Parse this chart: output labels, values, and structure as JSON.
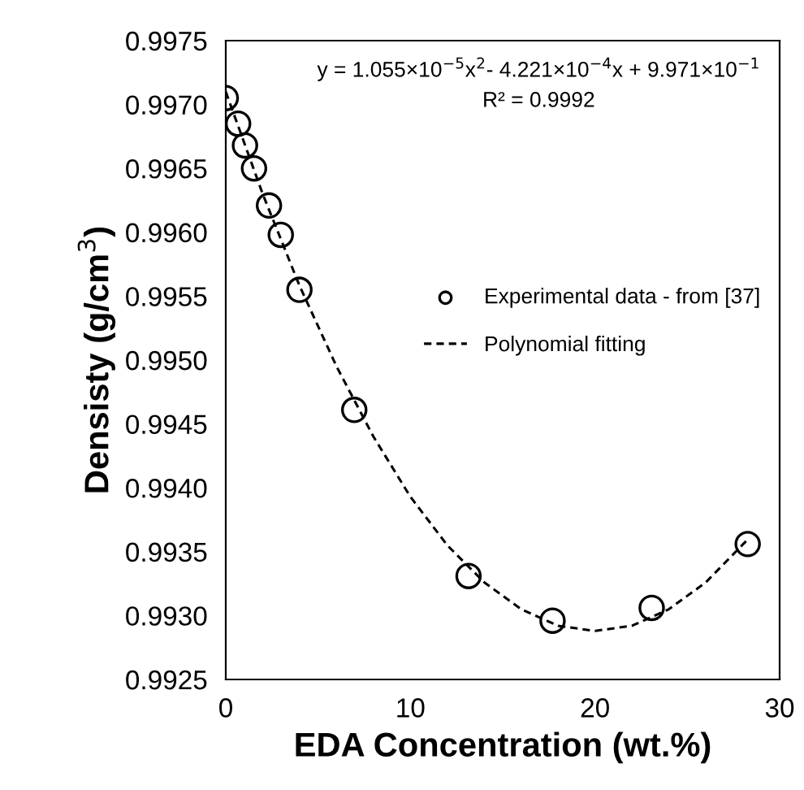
{
  "chart_data": {
    "type": "scatter",
    "xlabel": "EDA Concentration (wt.%)",
    "ylabel": "Densisty (g/cm$^{3}$)",
    "series": [
      {
        "name": "Experimental data - from [37]",
        "color": "#000000",
        "marker": "circle",
        "x": [
          0,
          0.67,
          1.04,
          1.53,
          2.34,
          2.98,
          3.99,
          6.96,
          13.15,
          17.7,
          23.07,
          28.27
        ],
        "values": [
          0.99705,
          0.99685,
          0.99668,
          0.9965,
          0.99621,
          0.99598,
          0.99555,
          0.99461,
          0.99331,
          0.99296,
          0.99306,
          0.99356
        ]
      },
      {
        "name": "Polynomial fitting",
        "type": "line",
        "color": "#000000",
        "line_style": "dashed",
        "marker": "none",
        "x": [
          0,
          2,
          4,
          6,
          8,
          10,
          12,
          14,
          16,
          18,
          20,
          22,
          24,
          26,
          28.3
        ],
        "values": [
          0.9971,
          0.9963,
          0.99558,
          0.99495,
          0.9944,
          0.99393,
          0.99355,
          0.99326,
          0.99305,
          0.99292,
          0.99288,
          0.99292,
          0.99305,
          0.99326,
          0.9936
        ]
      }
    ],
    "annotations": [
      "y = 1.055×10$^{−5}$x$^{2}$- 4.221×10$^{−4}$x + 9.971×10$^{−1}$",
      "R² = 0.9992"
    ],
    "xlim": [
      0,
      30
    ],
    "xticks": [
      0,
      10,
      20,
      30
    ],
    "ylim": [
      0.9925,
      0.9975
    ],
    "yticks": [
      {
        "value": 0.9925,
        "label": "0.9925"
      },
      {
        "value": 0.993,
        "label": "0.9930"
      },
      {
        "value": 0.9935,
        "label": "0.9935"
      },
      {
        "value": 0.994,
        "label": "0.9940"
      },
      {
        "value": 0.9945,
        "label": "0.9945"
      },
      {
        "value": 0.995,
        "label": "0.9950"
      },
      {
        "value": 0.9955,
        "label": "0.9955"
      },
      {
        "value": 0.996,
        "label": "0.9960"
      },
      {
        "value": 0.9965,
        "label": "0.9965"
      },
      {
        "value": 0.997,
        "label": "0.9970"
      },
      {
        "value": 0.9975,
        "label": "0.9975"
      }
    ],
    "grid": false,
    "legend": "right"
  }
}
